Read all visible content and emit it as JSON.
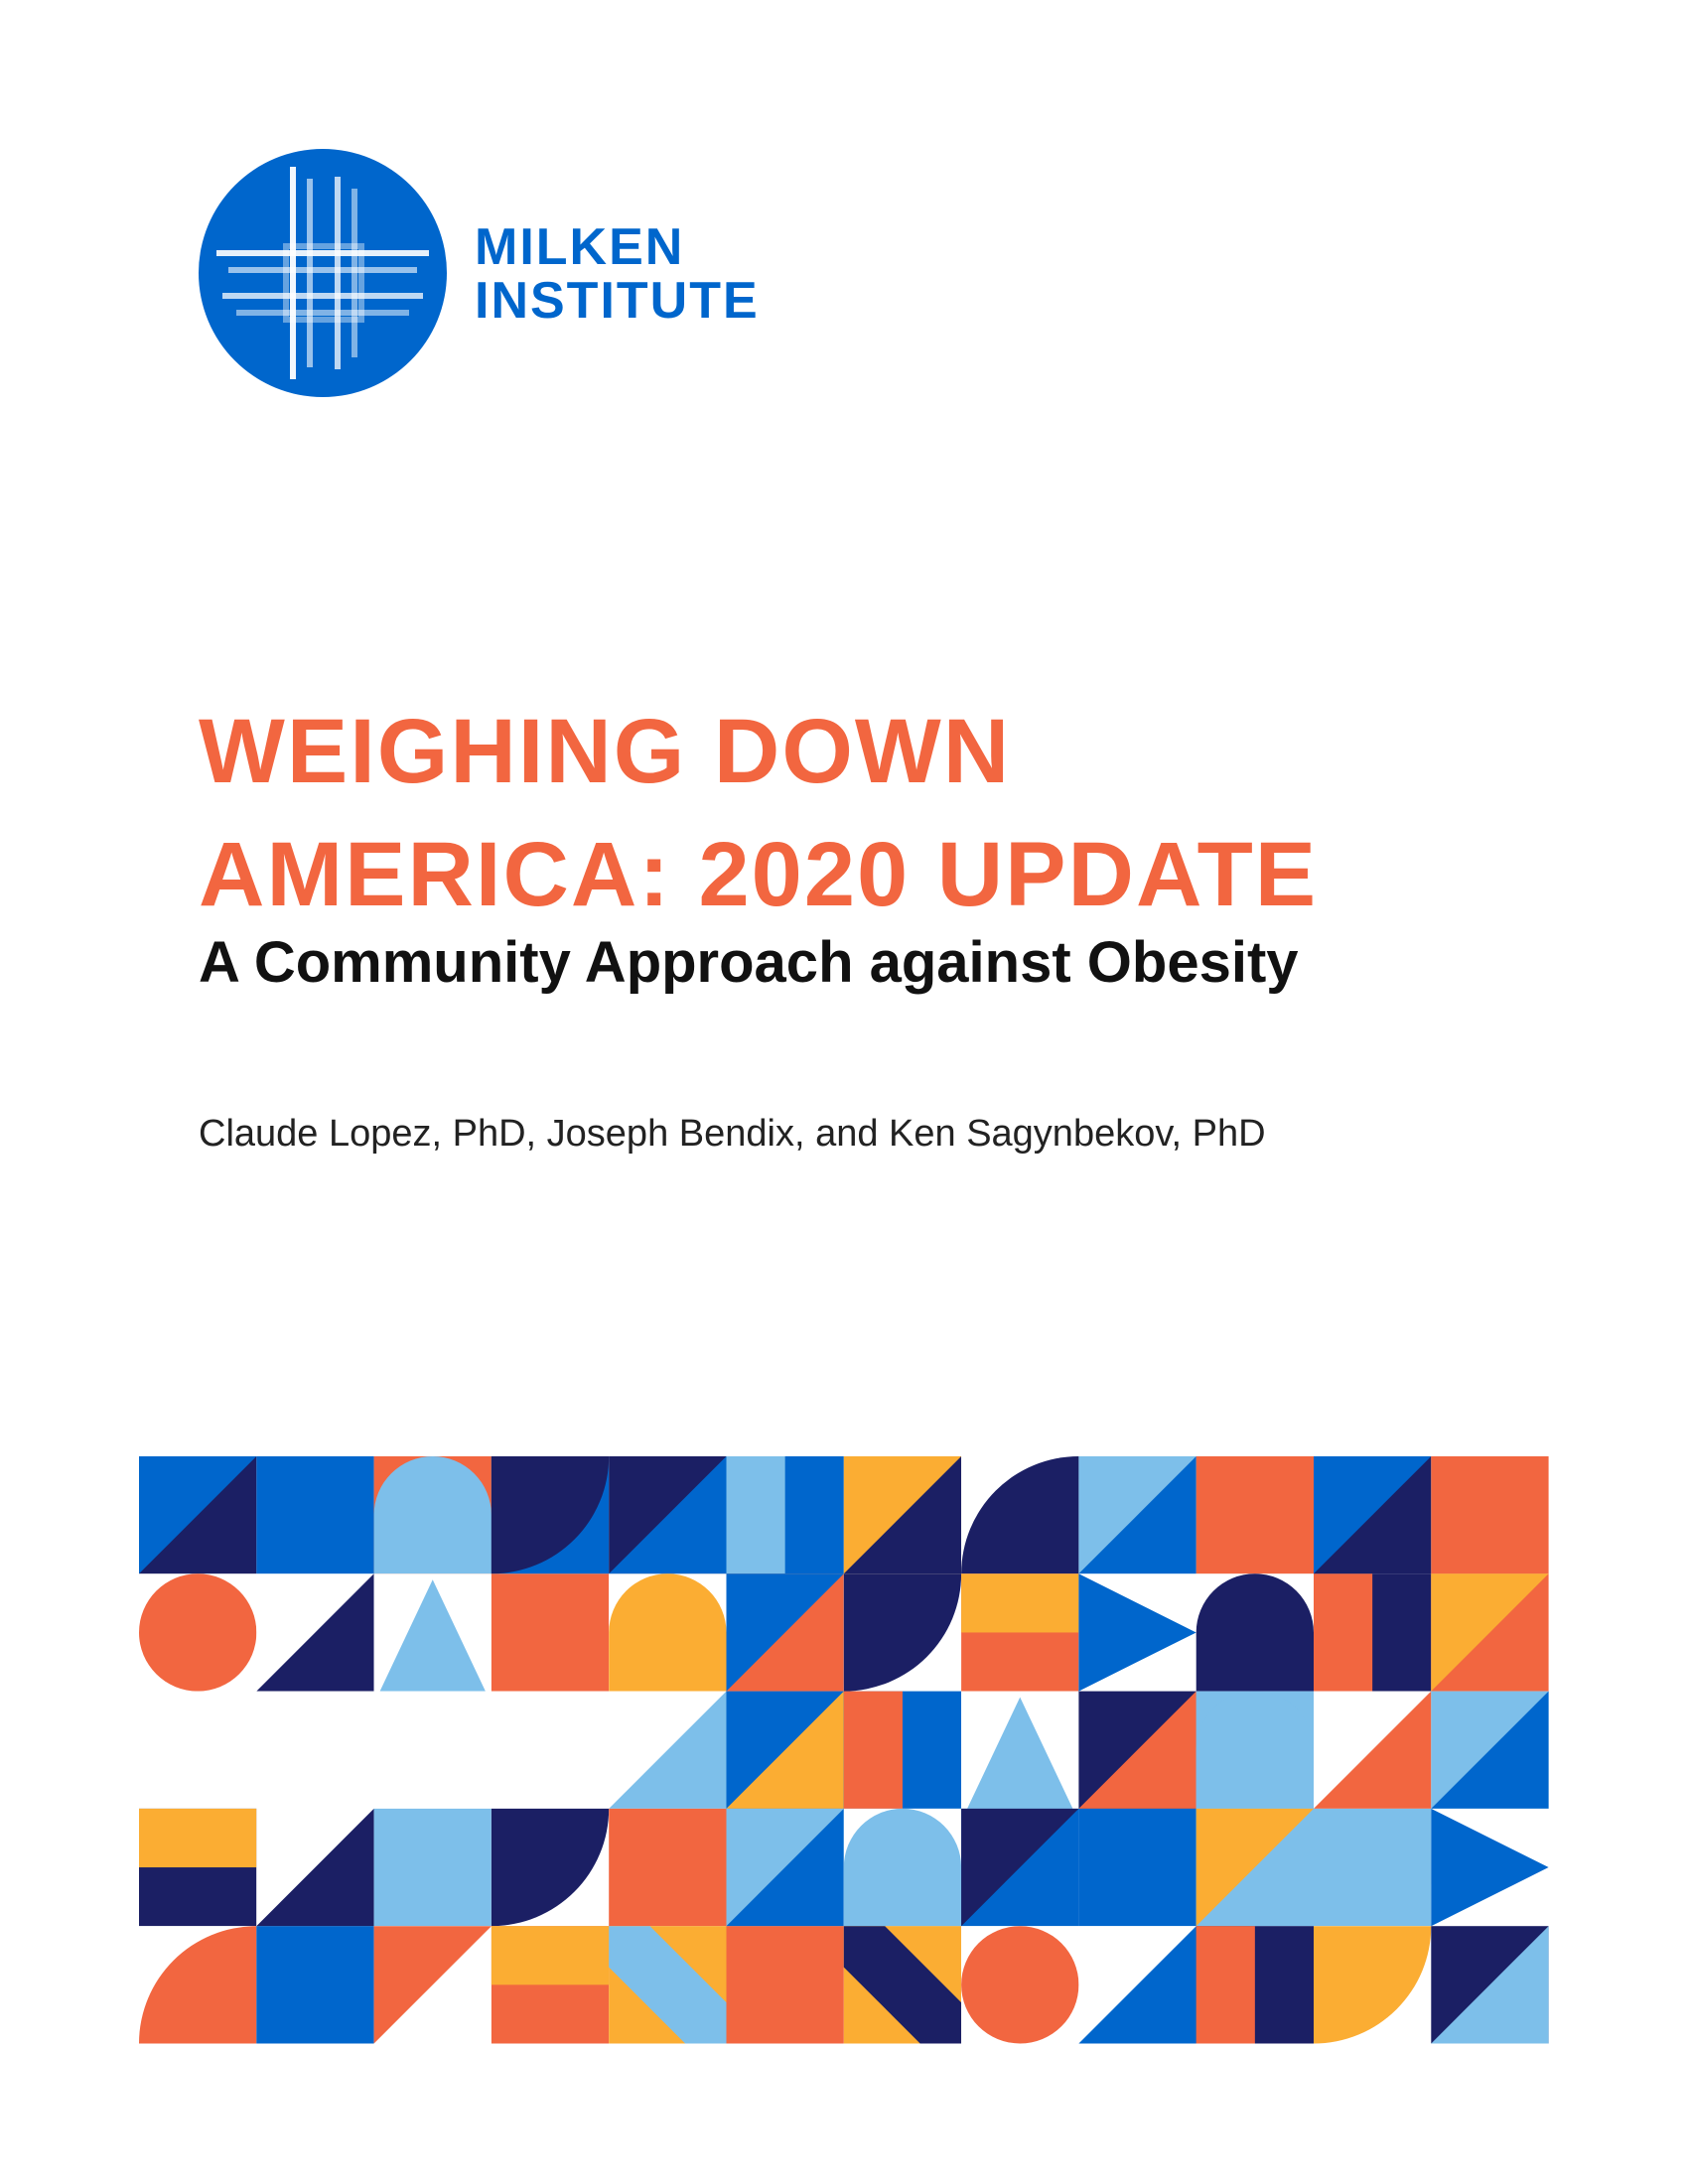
{
  "logo": {
    "line1": "MILKEN",
    "line2": "INSTITUTE",
    "icon": "milken-institute-logo-icon"
  },
  "title": {
    "line1": "WEIGHING DOWN",
    "line2": "AMERICA: 2020 UPDATE"
  },
  "subtitle": "A Community Approach against Obesity",
  "authors": "Claude Lopez, PhD, Joseph Bendix, and Ken Sagynbekov, PhD",
  "colors": {
    "brand_blue": "#0066CC",
    "title_orange": "#F26640",
    "pattern_orange": "#F26640",
    "pattern_yellow": "#FBAD33",
    "pattern_light_blue": "#7DBFEA",
    "pattern_blue": "#0066CC",
    "pattern_navy": "#1B1F64"
  }
}
